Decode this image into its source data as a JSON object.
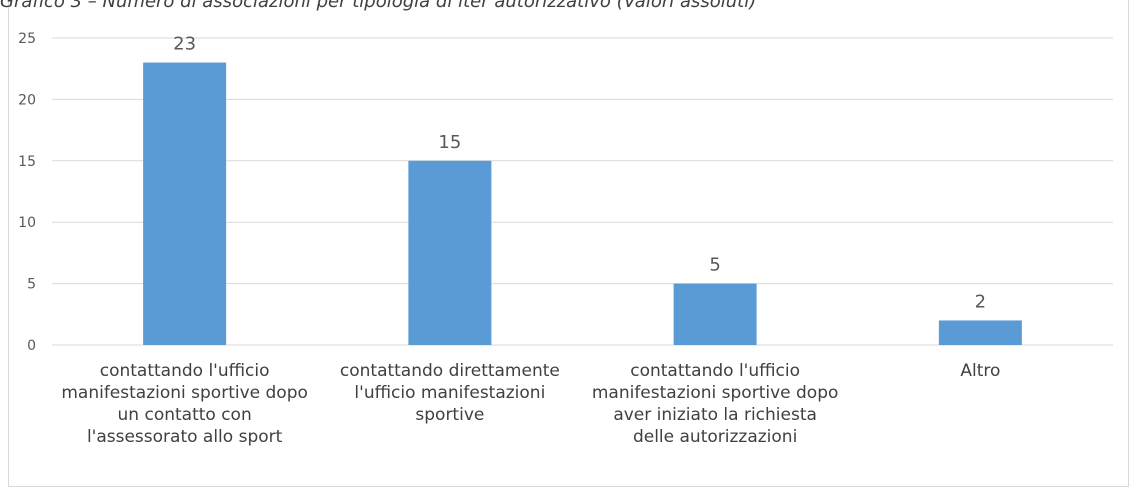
{
  "chart_data": {
    "type": "bar",
    "title": "Grafico 3 – Numero di associazioni per tipologia di iter autorizzativo (Valori assoluti)",
    "categories": [
      "contattando l'ufficio manifestazioni sportive dopo un contatto con l'assessorato allo sport",
      "contattando direttamente l'ufficio manifestazioni sportive",
      "contattando l'ufficio manifestazioni sportive dopo aver iniziato la richiesta delle autorizzazioni",
      "Altro"
    ],
    "values": [
      23,
      15,
      5,
      2
    ],
    "color": "#5b9bd5",
    "ylim": [
      0,
      25
    ],
    "yticks": [
      0,
      5,
      10,
      15,
      20,
      25
    ],
    "grid": true
  }
}
